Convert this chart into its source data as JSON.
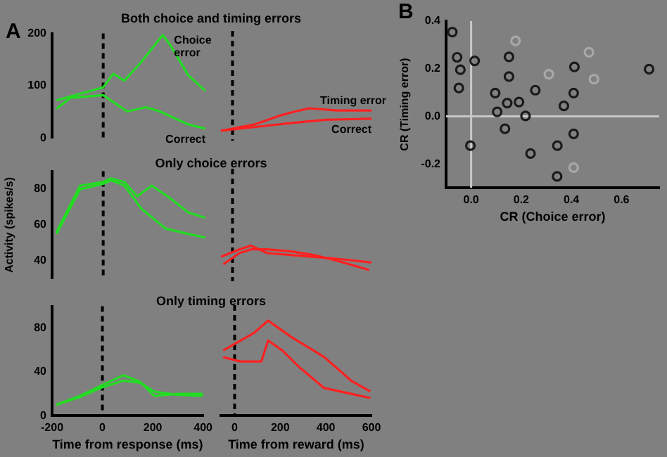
{
  "chart_data": [
    {
      "type": "line",
      "title": "Both choice and timing errors",
      "annotations": [
        "A"
      ],
      "xlim": [
        -200,
        400
      ],
      "xticks": [
        -200,
        0,
        200,
        400
      ],
      "ylim": [
        0,
        200
      ],
      "yticks": [
        0,
        100,
        200
      ],
      "tick_labels": "y",
      "grid": false,
      "legend": false,
      "marker": "none",
      "line_style": "solid",
      "ref_lines": [
        {
          "axis": "x",
          "value": 0,
          "color": "#000000",
          "line_style": "dashed"
        }
      ],
      "series": [
        {
          "name": "Choice error",
          "color": "#22dd22",
          "x": [
            -183,
            0,
            39,
            83,
            150,
            233,
            261,
            333,
            400
          ],
          "values": [
            72,
            97,
            123,
            110,
            146,
            197,
            179,
            120,
            90
          ]
        },
        {
          "name": "Correct",
          "color": "#22dd22",
          "x": [
            -183,
            -128,
            0,
            94,
            167,
            222,
            333,
            400
          ],
          "values": [
            56,
            77,
            82,
            51,
            59,
            51,
            26,
            18
          ]
        }
      ]
    },
    {
      "type": "line",
      "xticks": [
        0,
        200,
        400,
        600
      ],
      "ylim": [
        0,
        200
      ],
      "yticks": [
        0,
        100,
        200
      ],
      "tick_labels": false,
      "grid": false,
      "legend": false,
      "marker": "none",
      "line_style": "solid",
      "ref_lines": [
        {
          "axis": "x",
          "value": 0,
          "color": "#000000",
          "line_style": "dashed"
        }
      ],
      "series": [
        {
          "name": "Timing error",
          "color": "#ff2020",
          "x": [
            -50,
            100,
            200,
            250,
            330,
            450,
            600
          ],
          "values": [
            18,
            30,
            45,
            51,
            59,
            55,
            55
          ]
        },
        {
          "name": "Correct",
          "color": "#ff2020",
          "x": [
            -50,
            100,
            250,
            400,
            600
          ],
          "values": [
            18,
            25,
            32,
            38,
            40
          ]
        }
      ]
    },
    {
      "type": "line",
      "title": "Only choice errors",
      "ylabel": "Activity (spikes/s)",
      "xlim": [
        -200,
        400
      ],
      "xticks": [
        -200,
        0,
        200,
        400
      ],
      "ylim": [
        30,
        90
      ],
      "yticks": [
        40,
        60,
        80
      ],
      "tick_labels": "y",
      "grid": false,
      "legend": false,
      "marker": "none",
      "line_style": "solid",
      "ref_lines": [
        {
          "axis": "x",
          "value": 0,
          "color": "#000000",
          "line_style": "dashed"
        }
      ],
      "series": [
        {
          "color": "#22dd22",
          "x": [
            -183,
            -90,
            0,
            30,
            83,
            133,
            190,
            261,
            333,
            400
          ],
          "values": [
            56,
            82,
            84,
            86,
            84,
            76,
            82,
            75,
            67,
            64
          ]
        },
        {
          "color": "#22dd22",
          "x": [
            -183,
            -90,
            0,
            30,
            83,
            150,
            244,
            333,
            400
          ],
          "values": [
            55,
            80,
            83,
            85,
            82,
            69,
            58,
            55,
            53
          ]
        }
      ]
    },
    {
      "type": "line",
      "xticks": [
        0,
        200,
        400,
        600
      ],
      "ylim": [
        30,
        90
      ],
      "yticks": [
        40,
        60,
        80
      ],
      "tick_labels": false,
      "grid": false,
      "legend": false,
      "marker": "none",
      "line_style": "solid",
      "ref_lines": [
        {
          "axis": "x",
          "value": 0,
          "color": "#000000",
          "line_style": "dashed"
        }
      ],
      "series": [
        {
          "color": "#ff2020",
          "x": [
            -50,
            30,
            80,
            150,
            250,
            350,
            450,
            600
          ],
          "values": [
            43,
            47,
            49,
            45,
            44,
            43,
            42,
            40
          ]
        },
        {
          "color": "#ff2020",
          "x": [
            -40,
            30,
            80,
            150,
            250,
            350,
            450,
            590
          ],
          "values": [
            39,
            45,
            47,
            47,
            46,
            44,
            41,
            36
          ]
        }
      ]
    },
    {
      "type": "line",
      "title": "Only timing errors",
      "xlabel": "Time from response (ms)",
      "xlim": [
        -200,
        400
      ],
      "xticks": [
        -200,
        0,
        200,
        400
      ],
      "ylim": [
        0,
        100
      ],
      "yticks": [
        0,
        40,
        80
      ],
      "grid": false,
      "legend": false,
      "marker": "none",
      "line_style": "solid",
      "ref_lines": [
        {
          "axis": "x",
          "value": 0,
          "color": "#000000",
          "line_style": "dashed"
        }
      ],
      "series": [
        {
          "color": "#22dd22",
          "x": [
            -183,
            -90,
            0,
            83,
            150,
            206,
            300,
            400
          ],
          "values": [
            10,
            18,
            28,
            37,
            31,
            18,
            20,
            20
          ]
        },
        {
          "color": "#22dd22",
          "x": [
            -183,
            -90,
            0,
            83,
            150,
            206,
            300,
            400
          ],
          "values": [
            10,
            17,
            26,
            32,
            30,
            22,
            19,
            18
          ]
        }
      ]
    },
    {
      "type": "line",
      "xlabel": "Time from reward (ms)",
      "xlim": [
        -60,
        600
      ],
      "xticks": [
        0,
        200,
        400,
        600
      ],
      "ylim": [
        0,
        100
      ],
      "tick_labels": "x",
      "grid": false,
      "legend": false,
      "marker": "none",
      "line_style": "solid",
      "ref_lines": [
        {
          "axis": "x",
          "value": 0,
          "color": "#000000",
          "line_style": "dashed"
        }
      ],
      "series": [
        {
          "color": "#ff2020",
          "x": [
            -50,
            86,
            147,
            250,
            393,
            515,
            595
          ],
          "values": [
            59,
            75,
            86,
            71,
            53,
            31,
            22
          ]
        },
        {
          "color": "#ff2020",
          "x": [
            -50,
            25,
            117,
            147,
            209,
            288,
            393,
            595
          ],
          "values": [
            53,
            49,
            49,
            68,
            59,
            43,
            25,
            16
          ]
        }
      ]
    },
    {
      "type": "scatter",
      "annotations": [
        "B"
      ],
      "xlabel": "CR (Choice error)",
      "ylabel": "CR (Timing error)",
      "xlim": [
        -0.1,
        0.75
      ],
      "xticks": [
        {
          "value": 0,
          "label": "0.0"
        },
        0.2,
        0.4,
        0.6
      ],
      "ylim": [
        -0.3,
        0.4
      ],
      "yticks": [
        -0.2,
        {
          "value": 0,
          "label": "0.0"
        },
        0.2,
        0.4
      ],
      "grid": false,
      "legend": false,
      "marker": "circle",
      "ref_lines": [
        {
          "axis": "x",
          "value": 0,
          "color": "#c8c8c8"
        },
        {
          "axis": "y",
          "value": 0,
          "color": "#c8c8c8"
        }
      ],
      "series": [
        {
          "color": "#1a1a1a",
          "x": [
            -0.075,
            -0.056,
            -0.043,
            -0.049,
            0.014,
            -0.003,
            0.151,
            0.151,
            0.096,
            0.104,
            0.144,
            0.191,
            0.135,
            0.217,
            0.256,
            0.237,
            0.344,
            0.343,
            0.37,
            0.412,
            0.409,
            0.409,
            0.71
          ],
          "values": [
            0.354,
            0.248,
            0.196,
            0.119,
            0.233,
            -0.123,
            0.25,
            0.167,
            0.098,
            0.019,
            0.056,
            0.06,
            -0.052,
            0.002,
            0.11,
            -0.156,
            -0.123,
            -0.252,
            0.044,
            0.208,
            0.098,
            -0.073,
            0.198
          ]
        },
        {
          "color": "#a8a8a8",
          "x": [
            0.177,
            0.31,
            0.47,
            0.49,
            0.409
          ],
          "values": [
            0.317,
            0.177,
            0.269,
            0.156,
            -0.215
          ]
        }
      ]
    }
  ]
}
